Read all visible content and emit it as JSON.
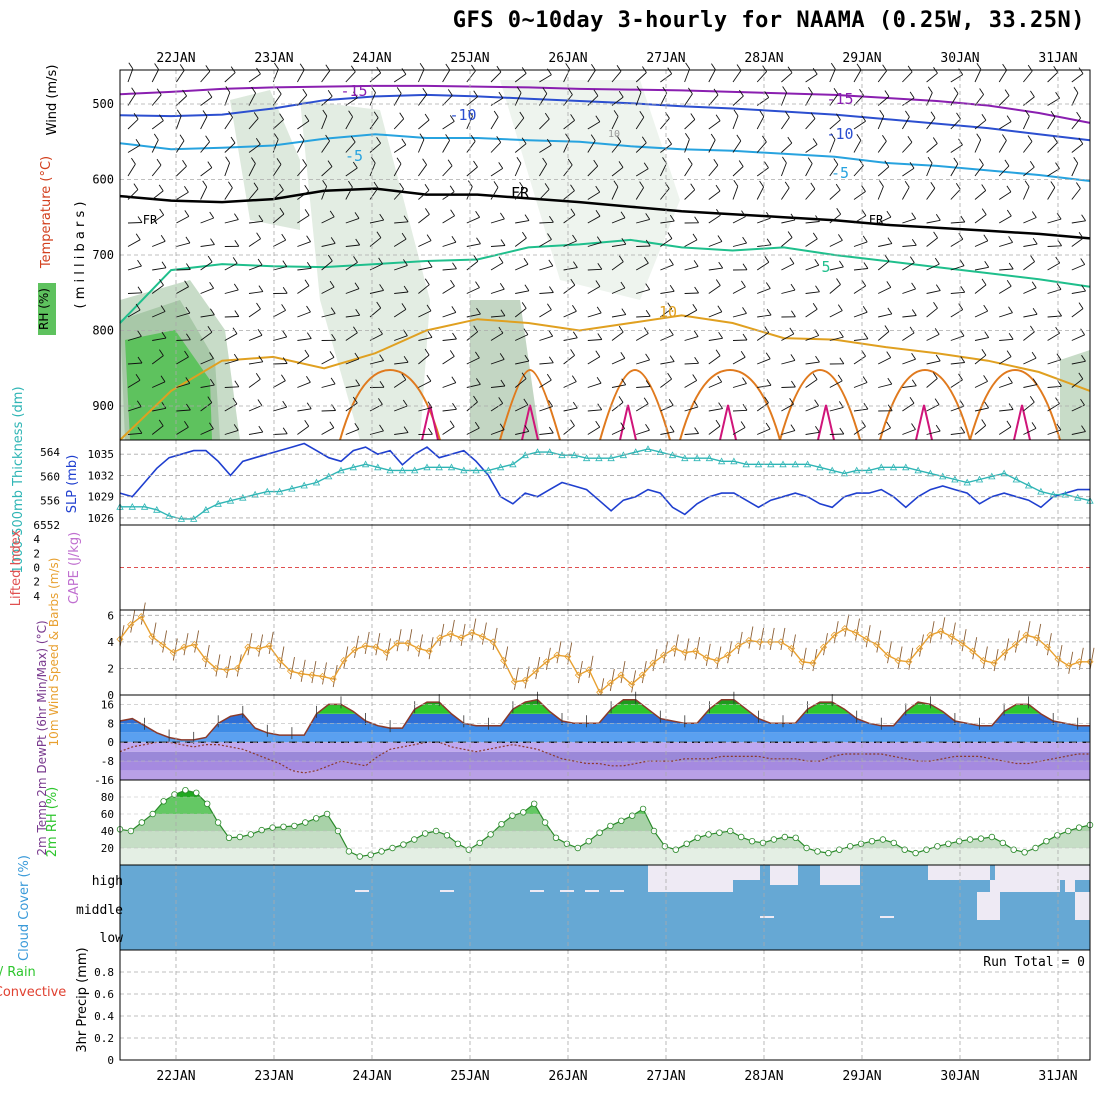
{
  "title": "GFS 0~10day 3-hourly for NAAMA (0.25W, 33.25N)",
  "dates": [
    "22JAN",
    "23JAN",
    "24JAN",
    "25JAN",
    "26JAN",
    "27JAN",
    "28JAN",
    "29JAN",
    "30JAN",
    "31JAN"
  ],
  "panels": {
    "upper_air": {
      "ylabels": {
        "wind": "Wind (m/s)",
        "temperature": "Temperature (°C)",
        "rh": "RH (%)",
        "millibars": "( m i l l i b a r s )"
      },
      "pressure_ticks": [
        500,
        600,
        700,
        800,
        900
      ],
      "contour_labels": [
        "-15",
        "-10",
        "-5",
        "FR",
        "5",
        "10",
        "10"
      ]
    },
    "thickness_slp": {
      "ylabel_thickness": "1000-500mb Thickness (dm)",
      "ylabel_slp": "SLP (mb)",
      "thickness_ticks": [
        552,
        556,
        560,
        564
      ],
      "slp_ticks": [
        1026,
        1029,
        1032,
        1035
      ]
    },
    "cape_li": {
      "ylabel_li": "Lifted Index",
      "ylabel_cape": "CAPE (J/kg)",
      "ticks": [
        -4,
        -2,
        0,
        2,
        4,
        6
      ]
    },
    "wind10m": {
      "ylabel": "10m Wind Speed & Barbs (m/s)",
      "ticks": [
        0,
        2,
        4,
        6
      ]
    },
    "temp2m": {
      "ylabel": "2m Temp 2m DewPt (6hr Min/Max) (°C)",
      "ticks": [
        -16,
        -8,
        0,
        8,
        16
      ]
    },
    "rh2m": {
      "ylabel": "2m RH (%)",
      "ticks": [
        20,
        40,
        60,
        80
      ]
    },
    "cloud": {
      "ylabel": "Cloud Cover (%)",
      "levels": [
        "high",
        "middle",
        "low"
      ]
    },
    "precip": {
      "ylabel_a": "Total / Rain",
      "ylabel_b": "Convective",
      "ylabel_c": "3hr Precip (mm)",
      "ticks": [
        "0",
        "0.2",
        "0.4",
        "0.6",
        "0.8"
      ],
      "run_total": "Run Total = 0"
    }
  },
  "chart_data": [
    {
      "type": "line",
      "title": "1000-500mb Thickness (dm) / SLP (mb)",
      "series": [
        {
          "name": "SLP (mb)",
          "axis": "right",
          "values": [
            1029.5,
            1029,
            1031,
            1033,
            1034.5,
            1035,
            1035.5,
            1035.5,
            1034,
            1032,
            1034,
            1034.5,
            1035,
            1035.5,
            1036,
            1036.5,
            1035.5,
            1034.5,
            1034,
            1035.5,
            1036,
            1035,
            1035.5,
            1033.5,
            1035,
            1036,
            1034.5,
            1035,
            1035.5,
            1034,
            1032,
            1029,
            1028,
            1029.5,
            1029,
            1030,
            1031,
            1030.5,
            1030,
            1028.5,
            1027,
            1028.5,
            1029,
            1030,
            1029.5,
            1027.5,
            1026.5,
            1028,
            1029,
            1029.5,
            1029.5,
            1028.5,
            1027.5,
            1028.5,
            1029,
            1029.5,
            1029,
            1028,
            1027.5,
            1029,
            1029.5,
            1029.5,
            1030,
            1029,
            1027.5,
            1029,
            1030,
            1030.5,
            1030,
            1029.5,
            1028,
            1029,
            1029.5,
            1029,
            1028.5,
            1027.5,
            1029,
            1029.5,
            1030,
            1030
          ]
        },
        {
          "name": "Thickness (dm)",
          "axis": "left",
          "values": [
            555,
            555,
            555,
            554.5,
            553.5,
            553,
            553,
            554.5,
            555.5,
            556,
            556.5,
            557,
            557.5,
            557.5,
            558,
            558.5,
            559,
            560,
            561,
            561.5,
            562,
            561.5,
            561,
            561,
            561,
            561.5,
            561.5,
            561.5,
            561,
            561,
            561,
            561.5,
            562,
            563.5,
            564,
            564,
            563.5,
            563.5,
            563,
            563,
            563,
            563.5,
            564,
            564.5,
            564,
            563.5,
            563,
            563,
            563,
            562.5,
            562.5,
            562,
            562,
            562,
            562,
            562,
            562,
            561.5,
            561,
            560.5,
            561,
            561,
            561.5,
            561.5,
            561.5,
            561,
            560.5,
            560,
            559.5,
            559,
            559.5,
            560,
            560.5,
            559.5,
            558.5,
            557.5,
            557,
            557,
            556.5,
            556
          ]
        }
      ],
      "ylim_left": [
        552,
        566
      ],
      "ylim_right": [
        1025,
        1037
      ]
    },
    {
      "type": "line",
      "title": "10m Wind Speed (m/s)",
      "series": [
        {
          "name": "10m Wind Speed",
          "values": [
            4.2,
            5.3,
            5.9,
            4.4,
            3.8,
            3.2,
            3.6,
            3.8,
            2.7,
            2.0,
            1.9,
            2.0,
            3.6,
            3.5,
            3.7,
            2.6,
            1.8,
            1.6,
            1.5,
            1.4,
            1.2,
            2.6,
            3.4,
            3.7,
            3.6,
            3.2,
            3.9,
            3.9,
            3.5,
            3.3,
            4.3,
            4.6,
            4.3,
            4.7,
            4.4,
            4.0,
            2.6,
            1.0,
            1.1,
            1.8,
            2.5,
            3.0,
            2.9,
            1.5,
            1.9,
            0.2,
            0.9,
            1.5,
            0.8,
            1.5,
            2.4,
            3.0,
            3.5,
            3.2,
            3.3,
            2.8,
            2.6,
            3.0,
            3.7,
            4.1,
            4.0,
            4.0,
            4.0,
            3.5,
            2.5,
            2.4,
            3.6,
            4.5,
            5.0,
            4.7,
            4.2,
            3.8,
            3.0,
            2.6,
            2.5,
            3.5,
            4.5,
            4.8,
            4.4,
            3.9,
            3.3,
            2.6,
            2.4,
            3.2,
            3.8,
            4.5,
            4.3,
            3.6,
            2.7,
            2.2,
            2.5,
            2.5
          ]
        }
      ],
      "ylim": [
        0,
        6.4
      ]
    },
    {
      "type": "area",
      "title": "2m Temp / 2m DewPt (°C)",
      "series": [
        {
          "name": "2m Temp",
          "values": [
            9,
            10,
            7,
            4,
            2,
            1,
            1,
            2,
            8,
            11,
            12,
            6,
            4,
            3,
            3,
            3,
            12,
            16,
            16,
            13,
            9,
            7,
            6,
            6,
            14,
            17,
            17,
            12,
            8,
            7,
            7,
            7,
            14,
            17,
            18,
            13,
            9,
            8,
            8,
            8,
            14,
            18,
            18,
            14,
            10,
            9,
            8,
            8,
            14,
            18,
            18,
            14,
            10,
            8,
            8,
            8,
            14,
            17,
            17,
            14,
            10,
            8,
            7,
            7,
            13,
            17,
            16,
            13,
            9,
            8,
            7,
            7,
            13,
            16,
            16,
            12,
            9,
            8,
            7,
            7
          ]
        },
        {
          "name": "2m DewPt",
          "values": [
            -4,
            -2,
            -1,
            0,
            0,
            -1,
            -2,
            -1,
            -1,
            -2,
            -3,
            -5,
            -7,
            -9,
            -12,
            -13,
            -12,
            -10,
            -8,
            -9,
            -10,
            -6,
            -3,
            -2,
            -1,
            0,
            0,
            -2,
            -3,
            -4,
            -3,
            -2,
            -1,
            -2,
            -3,
            -5,
            -7,
            -8,
            -9,
            -9,
            -10,
            -10,
            -9,
            -8,
            -8,
            -8,
            -7,
            -7,
            -7,
            -6,
            -6,
            -6,
            -6,
            -7,
            -7,
            -7,
            -8,
            -8,
            -6,
            -5,
            -5,
            -5,
            -5,
            -6,
            -7,
            -8,
            -8,
            -7,
            -6,
            -6,
            -6,
            -7,
            -8,
            -9,
            -9,
            -8,
            -7,
            -6,
            -5,
            -5
          ]
        }
      ],
      "ylim": [
        -16,
        20
      ]
    },
    {
      "type": "area",
      "title": "2m RH (%)",
      "series": [
        {
          "name": "2m RH",
          "values": [
            42,
            40,
            50,
            60,
            75,
            83,
            88,
            85,
            72,
            50,
            32,
            33,
            36,
            41,
            44,
            45,
            46,
            50,
            55,
            60,
            40,
            16,
            10,
            12,
            16,
            20,
            24,
            30,
            37,
            40,
            35,
            25,
            18,
            26,
            36,
            48,
            58,
            62,
            72,
            50,
            32,
            25,
            20,
            28,
            38,
            46,
            52,
            58,
            66,
            40,
            22,
            18,
            25,
            32,
            36,
            38,
            40,
            33,
            28,
            26,
            30,
            33,
            32,
            20,
            16,
            14,
            18,
            22,
            25,
            28,
            30,
            26,
            18,
            14,
            18,
            22,
            25,
            28,
            30,
            31,
            33,
            26,
            18,
            15,
            20,
            28,
            35,
            40,
            44,
            47
          ]
        }
      ],
      "ylim": [
        0,
        100
      ]
    },
    {
      "type": "line",
      "title": "3hr Precip (mm)",
      "series": [
        {
          "name": "Total / Rain",
          "values": [
            0
          ]
        }
      ],
      "ylim": [
        0,
        1
      ]
    }
  ]
}
